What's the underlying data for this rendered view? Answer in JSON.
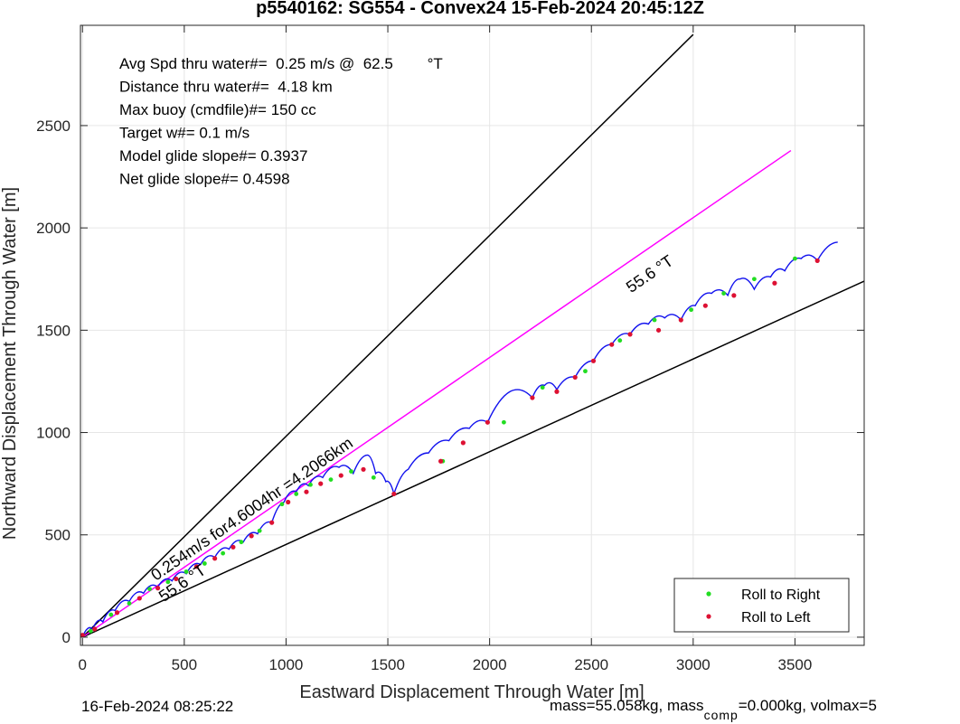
{
  "title": "p5540162: SG554 - Convex24 15-Feb-2024 20:45:12Z",
  "footer": {
    "date": "16-Feb-2024 08:25:22",
    "mass_a": "mass=55.058kg, mass",
    "mass_sub": "comp",
    "mass_b": "=0.000kg, volmax=5"
  },
  "chart_data": {
    "type": "line",
    "title": "p5540162: SG554 - Convex24 15-Feb-2024 20:45:12Z",
    "xlabel": "Eastward Displacement Through Water [m]",
    "ylabel": "Northward Displacement Through Water [m]",
    "xlim": [
      -10,
      3840
    ],
    "ylim": [
      -40,
      2990
    ],
    "xticks": [
      0,
      500,
      1000,
      1500,
      2000,
      2500,
      3000,
      3500
    ],
    "yticks": [
      0,
      500,
      1000,
      1500,
      2000,
      2500
    ],
    "grid": true,
    "legend_position": "bottom-right",
    "legend": [
      {
        "label": "Roll to Right",
        "color": "#22dd22"
      },
      {
        "label": "Roll to Left",
        "color": "#dd1133"
      }
    ],
    "info_text": [
      "Avg Spd thru water#=  0.25 m/s @  62.5        °T",
      "Distance thru water#=  4.18 km",
      "Max buoy (cmdfile)#= 150 cc",
      "Target w#= 0.1 m/s",
      "Model glide slope#= 0.3937",
      "Net glide slope#= 0.4598"
    ],
    "annotations": [
      "55.6 °T",
      "0.254m/s for4.6004hr =4.2066km",
      "55.6 °T"
    ],
    "reference_lines": [
      {
        "name": "upper bound",
        "color": "#000000",
        "x": [
          0,
          3000
        ],
        "y": [
          0,
          2945
        ]
      },
      {
        "name": "lower bound",
        "color": "#000000",
        "x": [
          0,
          3840
        ],
        "y": [
          0,
          1740
        ]
      },
      {
        "name": "mean heading",
        "color": "#ff00ff",
        "x": [
          0,
          3480
        ],
        "y": [
          0,
          2378
        ]
      }
    ],
    "track_vertices": [
      [
        0,
        0
      ],
      [
        50,
        40
      ],
      [
        100,
        75
      ],
      [
        160,
        130
      ],
      [
        230,
        175
      ],
      [
        300,
        215
      ],
      [
        370,
        245
      ],
      [
        440,
        275
      ],
      [
        510,
        310
      ],
      [
        580,
        355
      ],
      [
        650,
        390
      ],
      [
        720,
        430
      ],
      [
        790,
        465
      ],
      [
        860,
        505
      ],
      [
        930,
        560
      ],
      [
        990,
        660
      ],
      [
        1050,
        710
      ],
      [
        1110,
        740
      ],
      [
        1180,
        780
      ],
      [
        1260,
        830
      ],
      [
        1330,
        800
      ],
      [
        1400,
        890
      ],
      [
        1440,
        800
      ],
      [
        1490,
        760
      ],
      [
        1530,
        700
      ],
      [
        1600,
        820
      ],
      [
        1700,
        900
      ],
      [
        1800,
        960
      ],
      [
        1900,
        1020
      ],
      [
        1990,
        1050
      ],
      [
        2100,
        1200
      ],
      [
        2210,
        1170
      ],
      [
        2270,
        1230
      ],
      [
        2330,
        1210
      ],
      [
        2420,
        1270
      ],
      [
        2510,
        1350
      ],
      [
        2600,
        1430
      ],
      [
        2690,
        1480
      ],
      [
        2780,
        1530
      ],
      [
        2860,
        1560
      ],
      [
        2940,
        1550
      ],
      [
        3010,
        1620
      ],
      [
        3090,
        1680
      ],
      [
        3170,
        1670
      ],
      [
        3230,
        1750
      ],
      [
        3300,
        1700
      ],
      [
        3380,
        1760
      ],
      [
        3450,
        1790
      ],
      [
        3530,
        1850
      ],
      [
        3610,
        1840
      ],
      [
        3710,
        1930
      ]
    ],
    "roll_to_right": [
      [
        40,
        30
      ],
      [
        140,
        110
      ],
      [
        230,
        165
      ],
      [
        330,
        235
      ],
      [
        420,
        270
      ],
      [
        510,
        320
      ],
      [
        600,
        360
      ],
      [
        690,
        410
      ],
      [
        780,
        465
      ],
      [
        870,
        520
      ],
      [
        980,
        650
      ],
      [
        1050,
        700
      ],
      [
        1120,
        745
      ],
      [
        1220,
        770
      ],
      [
        1320,
        810
      ],
      [
        1430,
        780
      ],
      [
        1770,
        860
      ],
      [
        2070,
        1050
      ],
      [
        2260,
        1220
      ],
      [
        2470,
        1300
      ],
      [
        2640,
        1450
      ],
      [
        2810,
        1550
      ],
      [
        2990,
        1600
      ],
      [
        3150,
        1680
      ],
      [
        3300,
        1750
      ],
      [
        3500,
        1850
      ]
    ],
    "roll_to_left": [
      [
        0,
        10
      ],
      [
        60,
        40
      ],
      [
        170,
        120
      ],
      [
        280,
        190
      ],
      [
        370,
        240
      ],
      [
        460,
        285
      ],
      [
        560,
        345
      ],
      [
        650,
        385
      ],
      [
        740,
        440
      ],
      [
        830,
        495
      ],
      [
        930,
        560
      ],
      [
        1010,
        660
      ],
      [
        1100,
        710
      ],
      [
        1170,
        750
      ],
      [
        1270,
        790
      ],
      [
        1380,
        820
      ],
      [
        1530,
        700
      ],
      [
        1760,
        860
      ],
      [
        1870,
        950
      ],
      [
        1990,
        1050
      ],
      [
        2210,
        1170
      ],
      [
        2330,
        1200
      ],
      [
        2420,
        1270
      ],
      [
        2510,
        1350
      ],
      [
        2600,
        1430
      ],
      [
        2690,
        1480
      ],
      [
        2830,
        1500
      ],
      [
        2940,
        1550
      ],
      [
        3060,
        1620
      ],
      [
        3200,
        1670
      ],
      [
        3400,
        1730
      ],
      [
        3610,
        1840
      ]
    ]
  }
}
